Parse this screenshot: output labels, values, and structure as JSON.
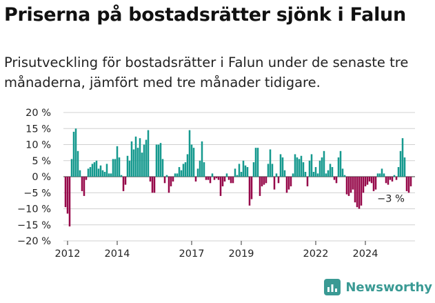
{
  "header": {
    "title": "Priserna på bostadsrätter sjönk i Falun",
    "subtitle": "Prisutveckling för bostadsrätter i Falun under de senaste tre månaderna, jämfört med tre månader tidigare."
  },
  "brand": {
    "name": "Newsworthy"
  },
  "colors": {
    "positive": "#15998e",
    "negative": "#96094a",
    "grid": "#d0d0d0",
    "axis": "#333333"
  },
  "chart_data": {
    "type": "bar",
    "y_ticks": [
      "20 %",
      "15 %",
      "10 %",
      "5 %",
      "0 %",
      "−5 %",
      "−10 %",
      "−15 %",
      "−20 %"
    ],
    "y_tick_values": [
      20,
      15,
      10,
      5,
      0,
      -5,
      -10,
      -15,
      -20
    ],
    "ylim": [
      -20,
      20
    ],
    "x_ticks": [
      {
        "label": "2012",
        "index": 1
      },
      {
        "label": "2014",
        "index": 25
      },
      {
        "label": "2017",
        "index": 61
      },
      {
        "label": "2019",
        "index": 85
      },
      {
        "label": "2022",
        "index": 121
      },
      {
        "label": "2024",
        "index": 145
      }
    ],
    "grid": true,
    "annotation": {
      "text": "−3 %",
      "index": 158
    },
    "series": [
      {
        "values": [
          -9.5,
          -11.5,
          -15.5,
          5.5,
          14,
          15,
          8,
          2,
          -4.5,
          -6,
          -1,
          2.5,
          3,
          4,
          4.5,
          5,
          2.5,
          3.5,
          2,
          1.5,
          4,
          1,
          1,
          5.5,
          5.5,
          9.5,
          6,
          0.5,
          -4.5,
          -2.5,
          6.5,
          5,
          11,
          8.5,
          12.5,
          9,
          12,
          7.5,
          10,
          11.5,
          14.5,
          -1.5,
          -5,
          -5,
          10,
          10,
          10.5,
          5.5,
          -2,
          0.5,
          -5,
          -3,
          -1.5,
          1,
          1,
          3,
          2,
          4,
          4.5,
          7,
          14.5,
          10,
          9,
          -1.5,
          2.5,
          5,
          11,
          4.5,
          -1,
          -1,
          -2,
          1,
          -1,
          -0.5,
          -1,
          -6,
          -3,
          -1.5,
          1,
          -1,
          -2,
          -2,
          2.5,
          0.5,
          4,
          1.5,
          5,
          3.5,
          3,
          -9,
          -7,
          4.5,
          9,
          9,
          -6,
          -3,
          -2.5,
          -2,
          4,
          8.5,
          4,
          -4,
          1,
          -2,
          7,
          6,
          2,
          -5,
          -4,
          -3,
          1,
          7,
          6,
          5.5,
          6.5,
          4.5,
          1.5,
          -3,
          5,
          7,
          1.5,
          3,
          1,
          5,
          6,
          8,
          1,
          2,
          4,
          3,
          -1,
          -2,
          6,
          8,
          2.5,
          0.5,
          -5.5,
          -6,
          -5,
          -4,
          -8,
          -9.5,
          -10,
          -9,
          -5,
          -3,
          -2.5,
          -1.5,
          -2,
          -4.5,
          -4,
          1,
          1,
          2.5,
          1,
          -2,
          -2.5,
          -1,
          -1.5,
          0.5,
          -1,
          3,
          8,
          12,
          6,
          -4.5,
          -5,
          -3
        ]
      }
    ]
  }
}
